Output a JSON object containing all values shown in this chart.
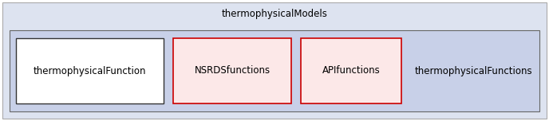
{
  "outer_label": "thermophysicalModels",
  "outer_bg": "#dde3f0",
  "outer_border": "#aaaaaa",
  "inner_bg": "#c8d0e8",
  "inner_border": "#666666",
  "boxes": [
    {
      "label": "thermophysicalFunction",
      "border_color": "#333333",
      "bg": "#ffffff"
    },
    {
      "label": "NSRDSfunctions",
      "border_color": "#cc0000",
      "bg": "#fce8e8"
    },
    {
      "label": "APIfunctions",
      "border_color": "#cc0000",
      "bg": "#fce8e8"
    }
  ],
  "plain_label": "thermophysicalFunctions",
  "font_size": 8.5,
  "outer_label_font_size": 8.5,
  "fig_width": 6.88,
  "fig_height": 1.52,
  "dpi": 100
}
